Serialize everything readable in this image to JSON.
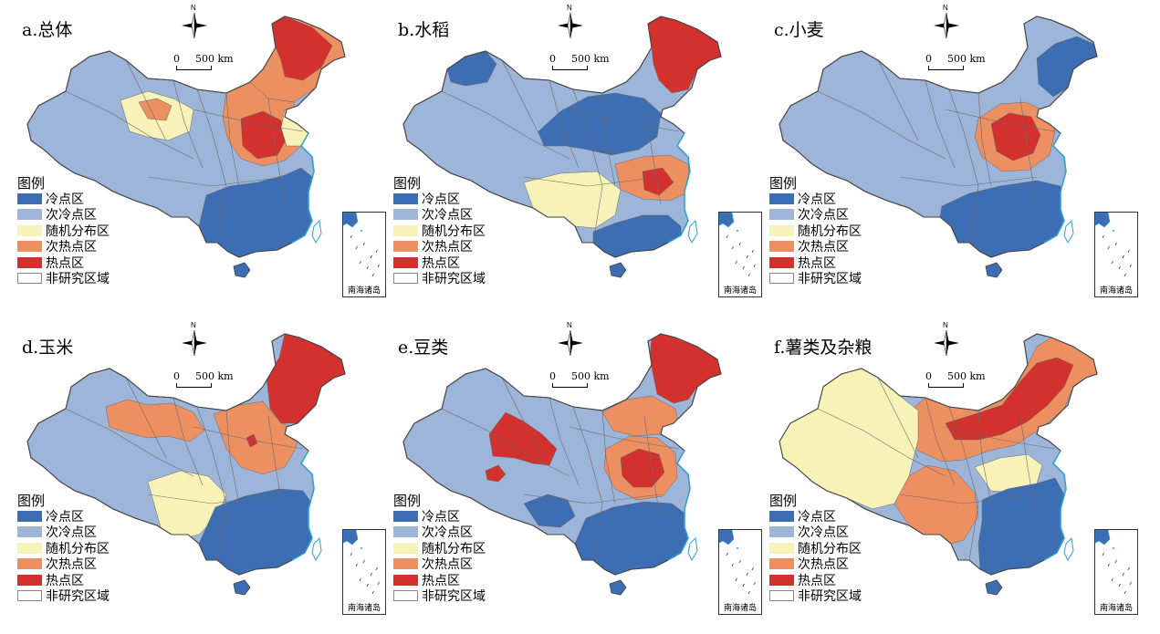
{
  "panels": [
    {
      "title": "a.总体",
      "scheme": "overall"
    },
    {
      "title": "b.水稻",
      "scheme": "rice"
    },
    {
      "title": "c.小麦",
      "scheme": "wheat"
    },
    {
      "title": "d.玉米",
      "scheme": "maize"
    },
    {
      "title": "e.豆类",
      "scheme": "beans"
    },
    {
      "title": "f.薯类及杂粮",
      "scheme": "tubers"
    }
  ],
  "north_label": "N",
  "scale": {
    "zero": "0",
    "dist": "500 km"
  },
  "legend": {
    "title": "图例",
    "items": [
      {
        "label": "冷点区",
        "color": "#3d6db3"
      },
      {
        "label": "次冷点区",
        "color": "#9db5d8"
      },
      {
        "label": "随机分布区",
        "color": "#f7f3b8"
      },
      {
        "label": "次热点区",
        "color": "#ec8f61"
      },
      {
        "label": "热点区",
        "color": "#d2312e"
      },
      {
        "label": "非研究区域",
        "color": "#ffffff"
      }
    ]
  },
  "inset_label": "南海诸岛"
}
